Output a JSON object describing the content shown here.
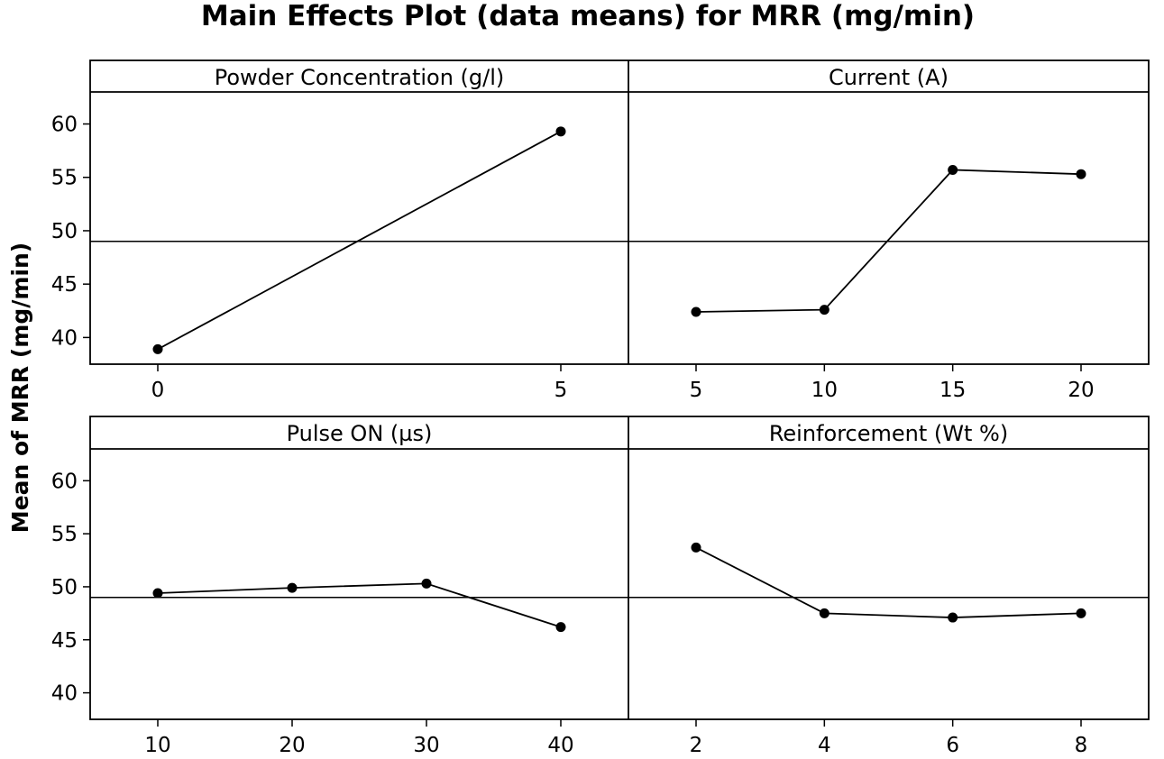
{
  "chart_data": {
    "type": "line",
    "title": "Main Effects Plot (data means) for MRR (mg/min)",
    "ylabel": "Mean of MRR (mg/min)",
    "ylim": [
      37.5,
      63
    ],
    "yticks": [
      40,
      45,
      50,
      55,
      60
    ],
    "reference_line": 49.0,
    "legend": "none",
    "grid": false,
    "panels": [
      {
        "name": "Powder Concentration (g/l)",
        "x": [
          "0",
          "5"
        ],
        "values": [
          38.9,
          59.3
        ]
      },
      {
        "name": "Current (A)",
        "x": [
          "5",
          "10",
          "15",
          "20"
        ],
        "values": [
          42.4,
          42.6,
          55.7,
          55.3
        ]
      },
      {
        "name": "Pulse ON (µs)",
        "x": [
          "10",
          "20",
          "30",
          "40"
        ],
        "values": [
          49.4,
          49.9,
          50.3,
          46.2
        ]
      },
      {
        "name": "Reinforcement (Wt %)",
        "x": [
          "2",
          "4",
          "6",
          "8"
        ],
        "values": [
          53.7,
          47.5,
          47.1,
          47.5
        ]
      }
    ]
  }
}
